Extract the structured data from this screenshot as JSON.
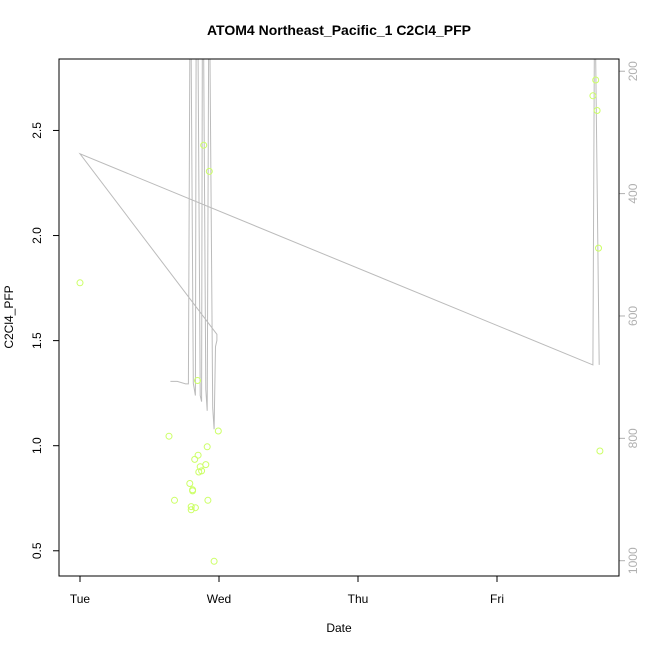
{
  "chart_data": {
    "type": "scatter",
    "title": "ATOM4 Northeast_Pacific_1 C2Cl4_PFP",
    "xlabel": "Date",
    "ylabel": "C2Cl4_PFP",
    "x_ticks": [
      "Tue",
      "Wed",
      "Thu",
      "Fri"
    ],
    "x_range_days": [
      0,
      3.9
    ],
    "y_ticks": [
      "0.5",
      "1.0",
      "1.5",
      "2.0",
      "2.5"
    ],
    "y_range": [
      0.38,
      2.84
    ],
    "y2_ticks": [
      "200",
      "400",
      "600",
      "800",
      "1000"
    ],
    "y2_range": [
      180,
      1025
    ],
    "y2_reversed": true,
    "point_color": "#ccff66",
    "line_color": "#bbbbbb",
    "axis_color": "#000000",
    "y2_axis_color": "#b0b0b0",
    "points": [
      {
        "day": 0.0,
        "value": 1.775
      },
      {
        "day": 0.64,
        "value": 1.045
      },
      {
        "day": 0.68,
        "value": 0.74
      },
      {
        "day": 0.79,
        "value": 0.82
      },
      {
        "day": 0.8,
        "value": 0.71
      },
      {
        "day": 0.8,
        "value": 0.695
      },
      {
        "day": 0.81,
        "value": 0.79
      },
      {
        "day": 0.81,
        "value": 0.785
      },
      {
        "day": 0.825,
        "value": 0.935
      },
      {
        "day": 0.83,
        "value": 0.705
      },
      {
        "day": 0.845,
        "value": 1.31
      },
      {
        "day": 0.85,
        "value": 0.955
      },
      {
        "day": 0.855,
        "value": 0.875
      },
      {
        "day": 0.865,
        "value": 0.9
      },
      {
        "day": 0.875,
        "value": 0.88
      },
      {
        "day": 0.89,
        "value": 2.43
      },
      {
        "day": 0.905,
        "value": 0.91
      },
      {
        "day": 0.915,
        "value": 0.995
      },
      {
        "day": 0.92,
        "value": 0.74
      },
      {
        "day": 0.93,
        "value": 2.305
      },
      {
        "day": 0.965,
        "value": 0.45
      },
      {
        "day": 0.995,
        "value": 1.07
      },
      {
        "day": 3.69,
        "value": 2.665
      },
      {
        "day": 3.71,
        "value": 2.74
      },
      {
        "day": 3.72,
        "value": 2.595
      },
      {
        "day": 3.73,
        "value": 1.94
      },
      {
        "day": 3.74,
        "value": 0.975
      }
    ],
    "pressure_line": [
      {
        "day": 0.65,
        "value": 707
      },
      {
        "day": 0.7,
        "value": 707
      },
      {
        "day": 0.76,
        "value": 711
      },
      {
        "day": 0.78,
        "value": 711
      },
      {
        "day": 0.79,
        "value": 180
      },
      {
        "day": 0.8,
        "value": 180
      },
      {
        "day": 0.815,
        "value": 710
      },
      {
        "day": 0.83,
        "value": 730
      },
      {
        "day": 0.835,
        "value": 180
      },
      {
        "day": 0.85,
        "value": 180
      },
      {
        "day": 0.865,
        "value": 730
      },
      {
        "day": 0.875,
        "value": 740
      },
      {
        "day": 0.88,
        "value": 180
      },
      {
        "day": 0.89,
        "value": 180
      },
      {
        "day": 0.905,
        "value": 720
      },
      {
        "day": 0.915,
        "value": 755
      },
      {
        "day": 0.925,
        "value": 180
      },
      {
        "day": 0.935,
        "value": 180
      },
      {
        "day": 0.955,
        "value": 750
      },
      {
        "day": 0.965,
        "value": 785
      },
      {
        "day": 0.975,
        "value": 650
      },
      {
        "day": 0.985,
        "value": 640
      },
      {
        "day": 0.985,
        "value": 630
      },
      {
        "day": 0.0,
        "value": 335
      },
      {
        "day": 3.69,
        "value": 680
      },
      {
        "day": 3.7,
        "value": 180
      },
      {
        "day": 3.71,
        "value": 180
      },
      {
        "day": 3.735,
        "value": 680
      }
    ]
  }
}
